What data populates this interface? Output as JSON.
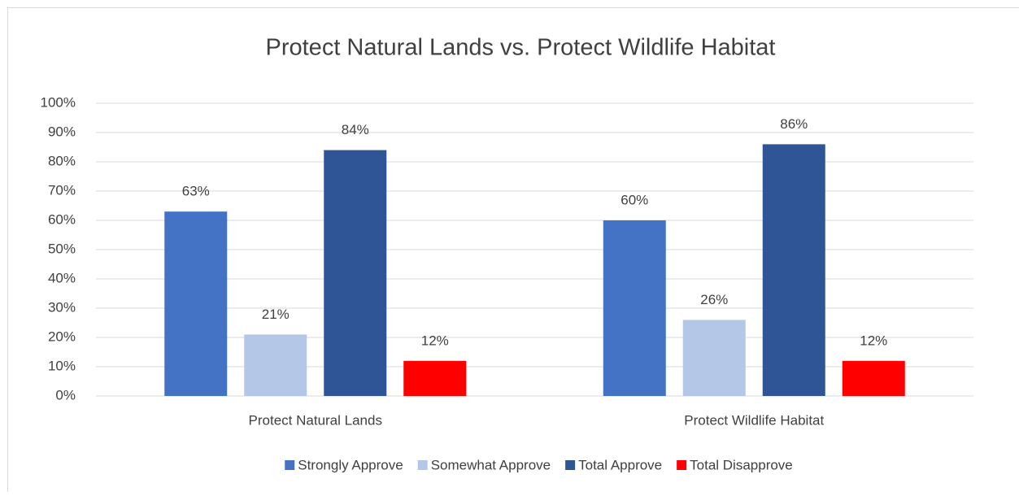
{
  "chart_data": {
    "type": "bar",
    "title": "Protect Natural Lands vs. Protect Wildlife Habitat",
    "categories": [
      "Protect Natural Lands",
      "Protect Wildlife Habitat"
    ],
    "series": [
      {
        "name": "Strongly Approve",
        "color": "#4472c4",
        "values": [
          63,
          60
        ],
        "value_labels": [
          "63%",
          "60%"
        ]
      },
      {
        "name": "Somewhat Approve",
        "color": "#b4c7e7",
        "values": [
          21,
          26
        ],
        "value_labels": [
          "21%",
          "26%"
        ]
      },
      {
        "name": "Total Approve",
        "color": "#2f5597",
        "values": [
          84,
          86
        ],
        "value_labels": [
          "84%",
          "86%"
        ]
      },
      {
        "name": "Total Disapprove",
        "color": "#ff0000",
        "values": [
          12,
          12
        ],
        "value_labels": [
          "12%",
          "12%"
        ]
      }
    ],
    "ylim": [
      0,
      100
    ],
    "yticks": [
      {
        "value": 0,
        "label": "0%"
      },
      {
        "value": 10,
        "label": "10%"
      },
      {
        "value": 20,
        "label": "20%"
      },
      {
        "value": 30,
        "label": "30%"
      },
      {
        "value": 40,
        "label": "40%"
      },
      {
        "value": 50,
        "label": "50%"
      },
      {
        "value": 60,
        "label": "60%"
      },
      {
        "value": 70,
        "label": "70%"
      },
      {
        "value": 80,
        "label": "80%"
      },
      {
        "value": 90,
        "label": "90%"
      },
      {
        "value": 100,
        "label": "100%"
      }
    ],
    "grid": true,
    "legend": "bottom"
  }
}
